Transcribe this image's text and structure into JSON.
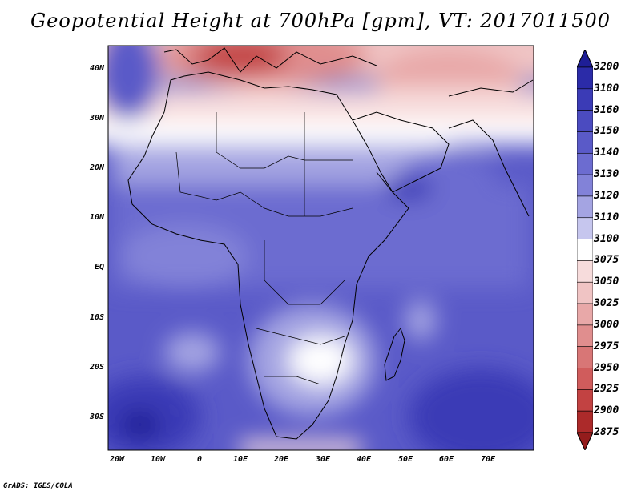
{
  "title": "Geopotential Height at 700hPa [gpm], VT: 2017011500",
  "credit": "GrADS: IGES/COLA",
  "map": {
    "lat_labels": [
      "40N",
      "30N",
      "20N",
      "10N",
      "EQ",
      "10S",
      "20S",
      "30S"
    ],
    "lon_labels": [
      "20W",
      "10W",
      "0",
      "10E",
      "20E",
      "30E",
      "40E",
      "50E",
      "60E",
      "70E"
    ]
  },
  "colorbar": {
    "levels": [
      "3200",
      "3180",
      "3160",
      "3150",
      "3140",
      "3130",
      "3120",
      "3110",
      "3100",
      "3075",
      "3050",
      "3025",
      "3000",
      "2975",
      "2950",
      "2925",
      "2900",
      "2875"
    ],
    "colors": [
      "#1e1e96",
      "#2b2ba8",
      "#3b3bb6",
      "#4b4bc0",
      "#5a5ac8",
      "#6c6cd0",
      "#8282d8",
      "#a4a4e2",
      "#c6c6ee",
      "#ffffff",
      "#f7dcdc",
      "#f0c4c4",
      "#e8a8a8",
      "#e08e8e",
      "#d87676",
      "#d05c5c",
      "#c24242",
      "#ac2a2a",
      "#941c1c"
    ]
  }
}
